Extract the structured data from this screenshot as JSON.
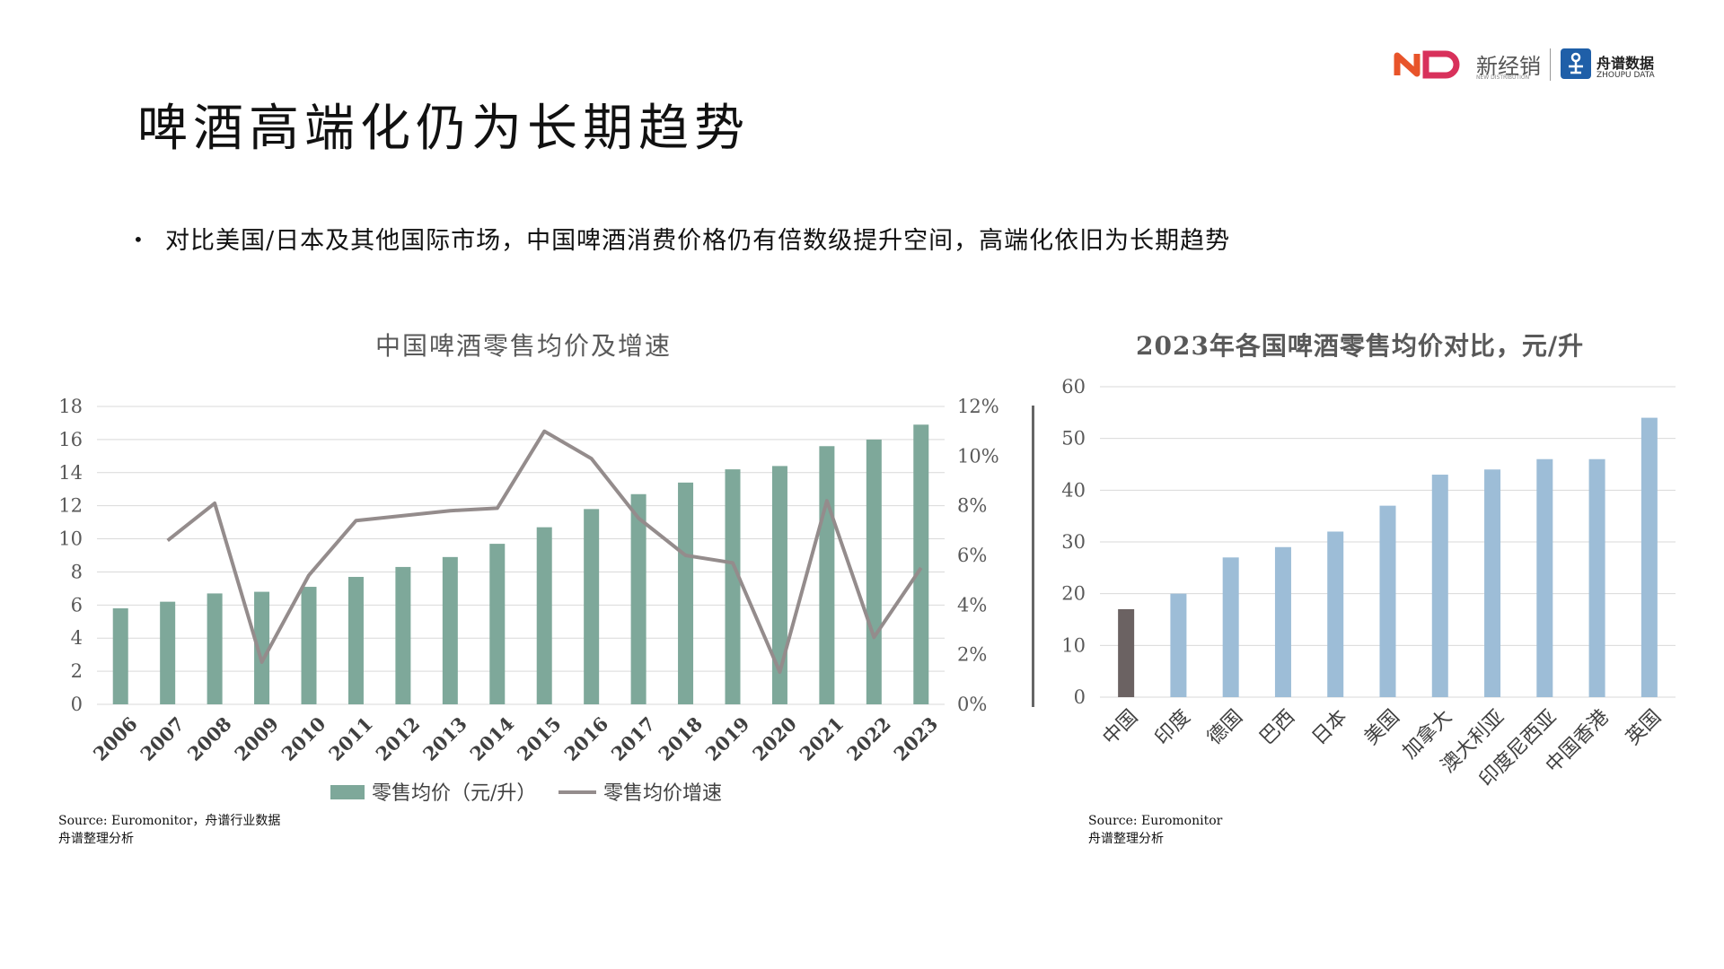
{
  "header": {
    "logo_newdist_cn": "新经销",
    "logo_newdist_en": "NEW DISTRIBUTION",
    "logo_zhoupu_cn": "舟谱数据",
    "logo_zhoupu_en": "ZHOUPU DATA"
  },
  "page": {
    "title": "啤酒高端化仍为长期趋势",
    "bullet": "对比美国/日本及其他国际市场，中国啤酒消费价格仍有倍数级提升空间，高端化依旧为长期趋势"
  },
  "colors": {
    "bar_green": "#7ea89a",
    "line_gray": "#948c8c",
    "bar_blue": "#9dbdd7",
    "bar_highlight": "#6b6262",
    "grid": "#d9d9d9"
  },
  "chart_data": [
    {
      "type": "bar",
      "title": "中国啤酒零售均价及增速",
      "categories": [
        "2006",
        "2007",
        "2008",
        "2009",
        "2010",
        "2011",
        "2012",
        "2013",
        "2014",
        "2015",
        "2016",
        "2017",
        "2018",
        "2019",
        "2020",
        "2021",
        "2022",
        "2023"
      ],
      "series": [
        {
          "name": "零售均价（元/升）",
          "type": "bar",
          "axis": "left",
          "values": [
            5.8,
            6.2,
            6.7,
            6.8,
            7.1,
            7.7,
            8.3,
            8.9,
            9.7,
            10.7,
            11.8,
            12.7,
            13.4,
            14.2,
            14.4,
            15.6,
            16.0,
            16.9
          ]
        },
        {
          "name": "零售均价增速",
          "type": "line",
          "axis": "right",
          "values": [
            null,
            0.066,
            0.081,
            0.017,
            0.052,
            0.074,
            0.076,
            0.078,
            0.079,
            0.11,
            0.099,
            0.075,
            0.06,
            0.057,
            0.013,
            0.082,
            0.027,
            0.055
          ]
        }
      ],
      "ylim": [
        0,
        18
      ],
      "yticks": [
        "0",
        "2",
        "4",
        "6",
        "8",
        "10",
        "12",
        "14",
        "16",
        "18"
      ],
      "y2lim": [
        0,
        0.12
      ],
      "y2ticks": [
        "0%",
        "2%",
        "4%",
        "6%",
        "8%",
        "10%",
        "12%"
      ],
      "legend_position": "bottom",
      "grid": true
    },
    {
      "type": "bar",
      "title": "2023年各国啤酒零售均价对比，元/升",
      "categories": [
        "中国",
        "印度",
        "德国",
        "巴西",
        "日本",
        "美国",
        "加拿大",
        "澳大利亚",
        "印度尼西亚",
        "中国香港",
        "英国"
      ],
      "values": [
        17,
        20,
        27,
        29,
        32,
        37,
        43,
        44,
        46,
        46,
        54
      ],
      "highlight": "中国",
      "ylim": [
        0,
        60
      ],
      "yticks": [
        "0",
        "10",
        "20",
        "30",
        "40",
        "50",
        "60"
      ],
      "grid": true
    }
  ],
  "sources": {
    "left_line1": "Source: Euromonitor，舟谱行业数据",
    "left_line2": "舟谱整理分析",
    "right_line1": "Source: Euromonitor",
    "right_line2": "舟谱整理分析"
  }
}
